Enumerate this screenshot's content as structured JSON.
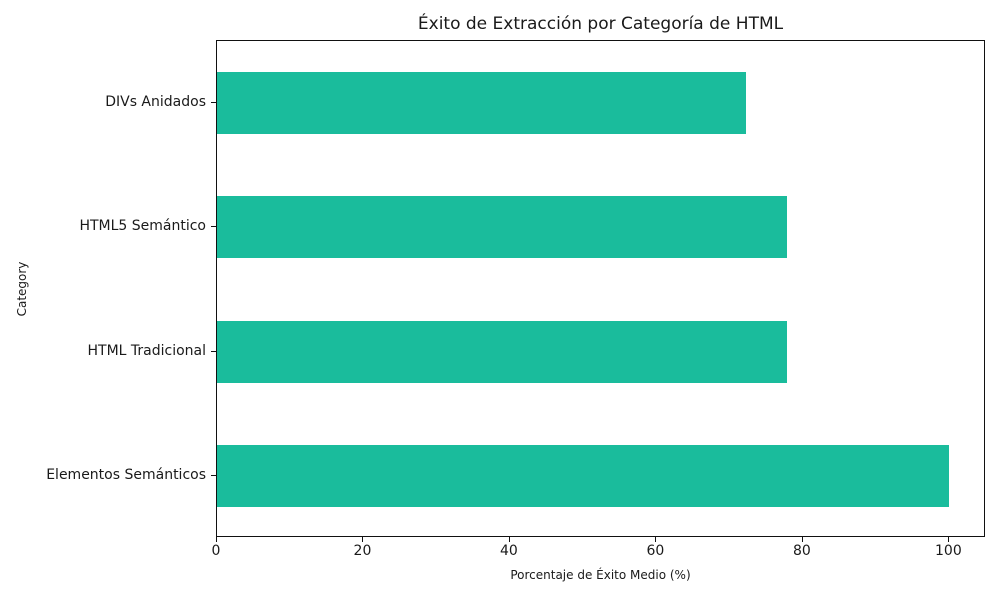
{
  "chart_data": {
    "type": "bar",
    "orientation": "horizontal",
    "title": "Éxito de Extracción por Categoría de HTML",
    "xlabel": "Porcentaje de Éxito Medio (%)",
    "ylabel": "Category",
    "categories": [
      "DIVs Anidados",
      "HTML5 Semántico",
      "HTML Tradicional",
      "Elementos Semánticos"
    ],
    "values": [
      72.2,
      77.8,
      77.8,
      100.0
    ],
    "xlim": [
      0,
      105
    ],
    "xticks": [
      "0",
      "20",
      "40",
      "60",
      "80",
      "100"
    ],
    "grid": false,
    "legend": null,
    "bar_color": "#1abc9c"
  }
}
